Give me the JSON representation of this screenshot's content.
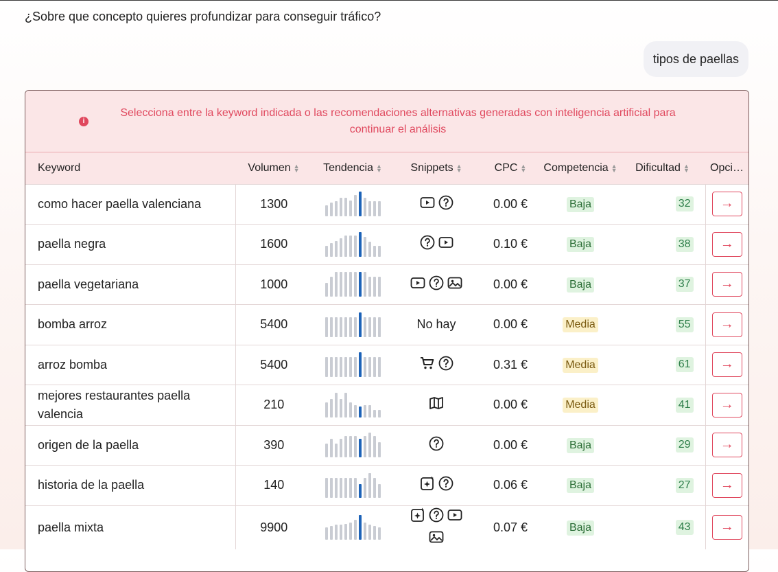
{
  "conversation": {
    "question": "¿Sobre que concepto quieres profundizar para conseguir tráfico?",
    "user_reply": "tipos de paellas"
  },
  "notice": {
    "text": "Selecciona entre la keyword indicada o las recomendaciones alternativas generadas con inteligencia artificial para continuar el análisis"
  },
  "table": {
    "headers": {
      "keyword": "Keyword",
      "volume": "Volumen",
      "trend": "Tendencia",
      "snippets": "Snippets",
      "cpc": "CPC",
      "competition": "Competencia",
      "difficulty": "Dificultad",
      "options": "Opci…"
    },
    "rows": [
      {
        "keyword": "como hacer paella valenciana",
        "volume": "1300",
        "trend": [
          0.45,
          0.55,
          0.6,
          0.75,
          0.75,
          0.65,
          0.85,
          1.0,
          0.75,
          0.6,
          0.6,
          0.6
        ],
        "trend_highlight": 7,
        "snippets": [
          "video",
          "question"
        ],
        "cpc": "0.00 €",
        "competition": "Baja",
        "competition_level": "baja",
        "difficulty": "32"
      },
      {
        "keyword": "paella negra",
        "volume": "1600",
        "trend": [
          0.45,
          0.55,
          0.65,
          0.75,
          0.85,
          0.85,
          0.85,
          1.0,
          0.8,
          0.6,
          0.45,
          0.45
        ],
        "trend_highlight": 7,
        "snippets": [
          "question",
          "video"
        ],
        "cpc": "0.10 €",
        "competition": "Baja",
        "competition_level": "baja",
        "difficulty": "38"
      },
      {
        "keyword": "paella vegetariana",
        "volume": "1000",
        "trend": [
          0.55,
          0.8,
          1.0,
          1.0,
          1.0,
          1.0,
          1.0,
          1.0,
          1.0,
          0.8,
          0.8,
          0.8
        ],
        "trend_highlight": 7,
        "snippets": [
          "video",
          "question",
          "image"
        ],
        "cpc": "0.00 €",
        "competition": "Baja",
        "competition_level": "baja",
        "difficulty": "37"
      },
      {
        "keyword": "bomba arroz",
        "volume": "5400",
        "trend": [
          0.8,
          0.8,
          0.8,
          0.8,
          0.8,
          0.8,
          0.8,
          1.0,
          0.8,
          0.8,
          0.8,
          0.8
        ],
        "trend_highlight": 7,
        "snippets": [],
        "snippets_empty": "No hay",
        "cpc": "0.00 €",
        "competition": "Media",
        "competition_level": "media",
        "difficulty": "55"
      },
      {
        "keyword": "arroz bomba",
        "volume": "5400",
        "trend": [
          0.8,
          0.8,
          0.8,
          0.8,
          0.8,
          0.8,
          0.8,
          1.0,
          0.8,
          0.8,
          0.8,
          0.8
        ],
        "trend_highlight": 7,
        "snippets": [
          "cart",
          "question"
        ],
        "cpc": "0.31 €",
        "competition": "Media",
        "competition_level": "media",
        "difficulty": "61"
      },
      {
        "keyword": "mejores restaurantes paella valencia",
        "volume": "210",
        "trend": [
          0.6,
          0.75,
          1.0,
          0.75,
          1.0,
          0.6,
          0.5,
          0.45,
          0.5,
          0.5,
          0.3,
          0.3
        ],
        "trend_highlight": 7,
        "snippets": [
          "map"
        ],
        "cpc": "0.00 €",
        "competition": "Media",
        "competition_level": "media",
        "difficulty": "41"
      },
      {
        "keyword": "origen de la paella",
        "volume": "390",
        "trend": [
          0.55,
          0.75,
          0.55,
          0.75,
          0.85,
          0.85,
          0.85,
          0.75,
          0.85,
          1.0,
          0.85,
          0.6
        ],
        "trend_highlight": 7,
        "snippets": [
          "question"
        ],
        "cpc": "0.00 €",
        "competition": "Baja",
        "competition_level": "baja",
        "difficulty": "29"
      },
      {
        "keyword": "historia de la paella",
        "volume": "140",
        "trend": [
          0.8,
          0.8,
          0.8,
          0.8,
          0.8,
          0.8,
          0.8,
          0.55,
          0.8,
          1.0,
          0.8,
          0.55
        ],
        "trend_highlight": 7,
        "snippets": [
          "ai",
          "question"
        ],
        "cpc": "0.06 €",
        "competition": "Baja",
        "competition_level": "baja",
        "difficulty": "27"
      },
      {
        "keyword": "paella mixta",
        "volume": "9900",
        "trend": [
          0.5,
          0.55,
          0.6,
          0.6,
          0.65,
          0.7,
          0.8,
          1.0,
          0.7,
          0.6,
          0.55,
          0.5
        ],
        "trend_highlight": 7,
        "snippets": [
          "ai",
          "question",
          "video",
          "image"
        ],
        "cpc": "0.07 €",
        "competition": "Baja",
        "competition_level": "baja",
        "difficulty": "43"
      }
    ]
  }
}
